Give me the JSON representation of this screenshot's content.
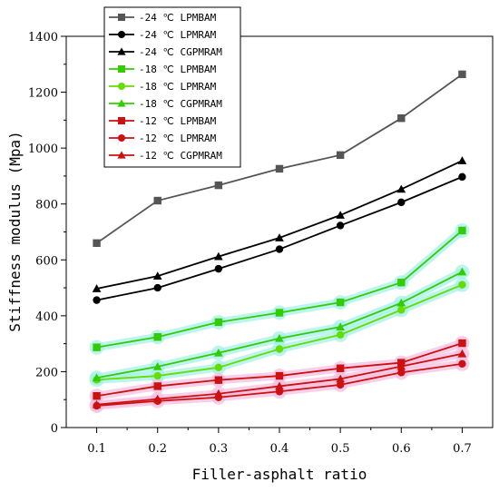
{
  "chart_data": {
    "type": "line",
    "x": [
      0.1,
      0.2,
      0.3,
      0.4,
      0.5,
      0.6,
      0.7
    ],
    "xlabel": "Filler-asphalt ratio",
    "ylabel": "Stiffness modulus (Mpa)",
    "xlim": [
      0.05,
      0.75
    ],
    "ylim": [
      0,
      1400
    ],
    "xticks": [
      "0.1",
      "0.2",
      "0.3",
      "0.4",
      "0.5",
      "0.6",
      "0.7"
    ],
    "yticks": [
      "0",
      "200",
      "400",
      "600",
      "800",
      "1000",
      "1200",
      "1400"
    ],
    "legend_position": "top-left",
    "series": [
      {
        "name": "-24 ℃ LPMBAM",
        "color": "#555555",
        "marker": "square",
        "highlight": false,
        "values": [
          660,
          812,
          867,
          926,
          975,
          1107,
          1264
        ]
      },
      {
        "name": "-24 ℃ LPMRAM",
        "color": "#000000",
        "marker": "circle",
        "highlight": false,
        "values": [
          456,
          500,
          568,
          638,
          723,
          806,
          897
        ]
      },
      {
        "name": "-24 ℃ CGPMRAM",
        "color": "#000000",
        "marker": "triangle",
        "highlight": false,
        "values": [
          497,
          542,
          612,
          679,
          760,
          853,
          955
        ]
      },
      {
        "name": "-18 ℃ LPMBAM",
        "color": "#33cc00",
        "marker": "square",
        "highlight": true,
        "glow": "#a6f0e8",
        "values": [
          287,
          324,
          377,
          411,
          448,
          519,
          705
        ]
      },
      {
        "name": "-18 ℃ LPMRAM",
        "color": "#66dd00",
        "marker": "circle",
        "highlight": true,
        "glow": "#a6f0e8",
        "values": [
          171,
          185,
          215,
          281,
          332,
          421,
          511
        ]
      },
      {
        "name": "-18 ℃ CGPMRAM",
        "color": "#33cc00",
        "marker": "triangle",
        "highlight": true,
        "glow": "#a6f0e8",
        "values": [
          178,
          218,
          267,
          319,
          360,
          446,
          557
        ]
      },
      {
        "name": "-12 ℃ LPMBAM",
        "color": "#cc1111",
        "marker": "square",
        "highlight": true,
        "glow": "#f5bfe0",
        "values": [
          113,
          148,
          170,
          185,
          212,
          232,
          302
        ]
      },
      {
        "name": "-12 ℃ LPMRAM",
        "color": "#cc1111",
        "marker": "circle",
        "highlight": true,
        "glow": "#f5bfe0",
        "values": [
          78,
          95,
          108,
          129,
          153,
          197,
          228
        ]
      },
      {
        "name": "-12 ℃ CGPMRAM",
        "color": "#cc1111",
        "marker": "triangle",
        "highlight": true,
        "glow": "#f5bfe0",
        "values": [
          82,
          102,
          121,
          148,
          174,
          219,
          264
        ]
      }
    ]
  }
}
